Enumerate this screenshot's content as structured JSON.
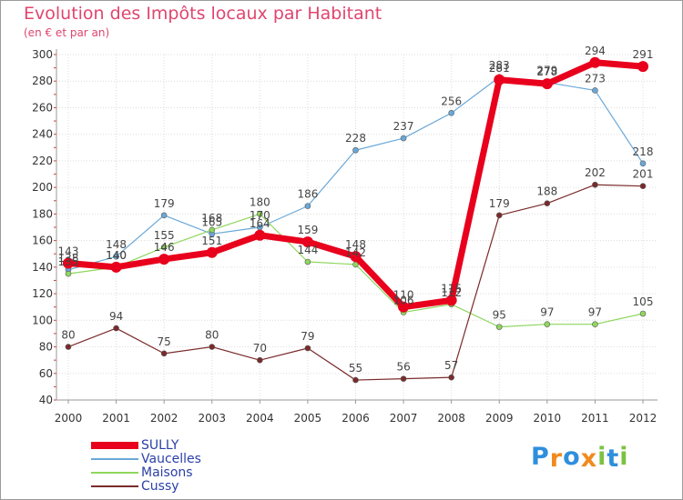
{
  "title": "Evolution des Impôts locaux par Habitant",
  "subtitle": "(en € et par an)",
  "logo": {
    "letters": [
      "P",
      "r",
      "o",
      "x",
      "i",
      "t",
      "i"
    ],
    "colors": [
      "#2f8fdc",
      "#f28a1e",
      "#2f8fdc",
      "#f28a1e",
      "#7cc242",
      "#2f8fdc",
      "#7cc242"
    ]
  },
  "chart_data": {
    "type": "line",
    "title": "Evolution des Impôts locaux par Habitant",
    "subtitle": "(en € et par an)",
    "x": [
      "2000",
      "2001",
      "2002",
      "2003",
      "2004",
      "2005",
      "2006",
      "2007",
      "2008",
      "2009",
      "2010",
      "2011",
      "2012"
    ],
    "ylim": [
      40,
      300
    ],
    "yticks": [
      40,
      60,
      80,
      100,
      120,
      140,
      160,
      180,
      200,
      220,
      240,
      260,
      280,
      300
    ],
    "grid": true,
    "legend_position": "bottom-left",
    "series": [
      {
        "name": "SULLY",
        "color": "#e8001c",
        "values": [
          143,
          140,
          146,
          151,
          164,
          159,
          148,
          110,
          115,
          281,
          278,
          294,
          291
        ]
      },
      {
        "name": "Vaucelles",
        "color": "#6aa8d8",
        "values": [
          138,
          148,
          179,
          165,
          170,
          186,
          228,
          237,
          256,
          283,
          279,
          273,
          218
        ]
      },
      {
        "name": "Maisons",
        "color": "#8fd65e",
        "values": [
          135,
          140,
          155,
          168,
          180,
          144,
          142,
          106,
          112,
          95,
          97,
          97,
          105
        ]
      },
      {
        "name": "Cussy",
        "color": "#7a2a2a",
        "values": [
          80,
          94,
          75,
          80,
          70,
          79,
          55,
          56,
          57,
          179,
          188,
          202,
          201
        ]
      }
    ],
    "data_labels": {
      "SULLY": [
        "143",
        "140",
        "146",
        "151",
        "164",
        "159",
        "148",
        "110",
        "115",
        "281",
        "278",
        "294",
        "291"
      ],
      "Vaucelles": [
        "138",
        "148",
        "179",
        "165",
        "170",
        "186",
        "228",
        "237",
        "256",
        "283",
        "279",
        "273",
        "218"
      ],
      "Maisons": [
        "135",
        "140",
        "155",
        "168",
        "180",
        "144",
        "142",
        "106",
        "112",
        "95",
        "97",
        "97",
        "105"
      ],
      "Cussy": [
        "80",
        "94",
        "75",
        "80",
        "70",
        "79",
        "55",
        "56",
        "57",
        "179",
        "188",
        "202",
        "201"
      ]
    }
  }
}
